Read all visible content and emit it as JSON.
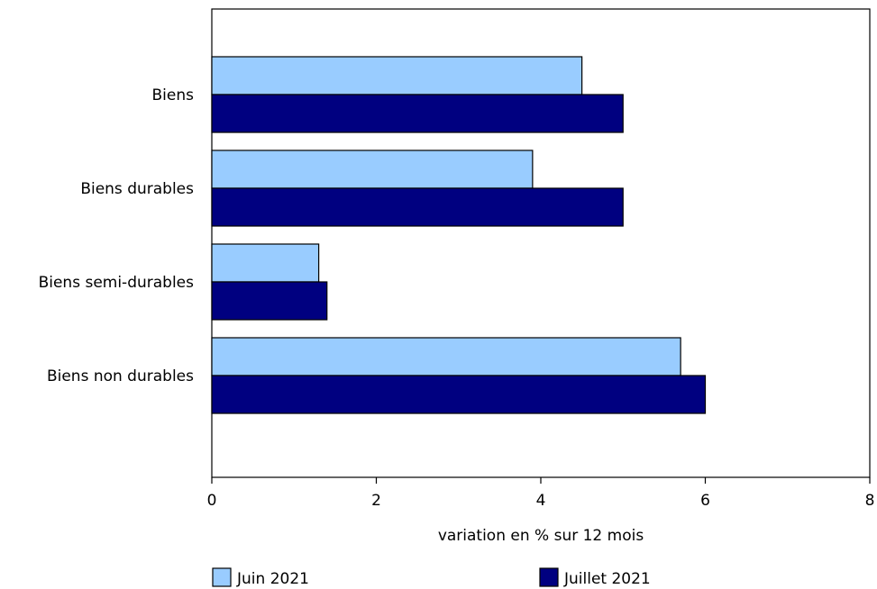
{
  "chart_data": {
    "type": "bar",
    "orientation": "horizontal",
    "categories": [
      "Biens",
      "Biens durables",
      "Biens semi-durables",
      "Biens non durables"
    ],
    "series": [
      {
        "name": "Juin 2021",
        "values": [
          4.5,
          3.9,
          1.3,
          5.7
        ],
        "color": "#99ccff"
      },
      {
        "name": "Juillet 2021",
        "values": [
          5.0,
          5.0,
          1.4,
          6.0
        ],
        "color": "#000080"
      }
    ],
    "xlabel": "variation en % sur 12 mois",
    "xlim": [
      0,
      8
    ],
    "xticks": [
      "0",
      "2",
      "4",
      "6",
      "8"
    ],
    "grid": false,
    "legend_position": "bottom"
  }
}
